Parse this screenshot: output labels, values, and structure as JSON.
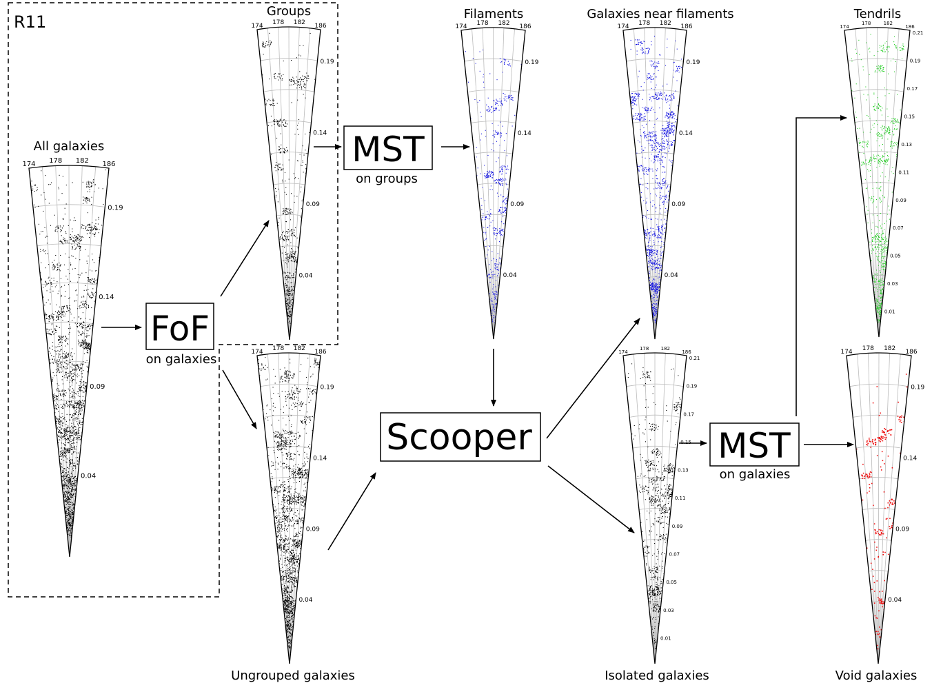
{
  "region_label": "R11",
  "boxes": {
    "fof": {
      "title": "FoF",
      "subtitle": "on galaxies"
    },
    "mst_groups": {
      "title": "MST",
      "subtitle": "on groups"
    },
    "scooper": {
      "title": "Scooper"
    },
    "mst_galaxies": {
      "title": "MST",
      "subtitle": "on galaxies"
    }
  },
  "wedges": [
    {
      "key": "all",
      "label": "All galaxies",
      "color": "#000000",
      "density": 2600,
      "top_ticks": [
        "174",
        "178",
        "182",
        "186"
      ],
      "radial_ticks": [
        "0.19",
        "0.14",
        "0.09",
        "0.04"
      ]
    },
    {
      "key": "groups",
      "label": "Groups",
      "color": "#000000",
      "density": 700,
      "top_ticks": [
        "174",
        "178",
        "182",
        "186"
      ],
      "radial_ticks": [
        "0.19",
        "0.14",
        "0.09",
        "0.04"
      ]
    },
    {
      "key": "filaments",
      "label": "Filaments",
      "color": "#1010e0",
      "density": 600,
      "top_ticks": [
        "174",
        "178",
        "182",
        "186"
      ],
      "radial_ticks": [
        "0.19",
        "0.14",
        "0.09",
        "0.04"
      ]
    },
    {
      "key": "near",
      "label": "Galaxies near filaments",
      "color": "#1010e0",
      "density": 1500,
      "top_ticks": [
        "174",
        "178",
        "182",
        "186"
      ],
      "radial_ticks": [
        "0.19",
        "0.14",
        "0.09",
        "0.04"
      ]
    },
    {
      "key": "tendrils",
      "label": "Tendrils",
      "color": "#22cc22",
      "density": 900,
      "top_ticks": [
        "174",
        "178",
        "182",
        "186"
      ],
      "radial_ticks": [
        "0.21",
        "0.19",
        "0.17",
        "0.15",
        "0.13",
        "0.11",
        "0.09",
        "0.07",
        "0.05",
        "0.03",
        "0.01"
      ]
    },
    {
      "key": "ungrouped",
      "label": "Ungrouped galaxies",
      "color": "#000000",
      "density": 2200,
      "top_ticks": [
        "174",
        "178",
        "182",
        "186"
      ],
      "radial_ticks": [
        "0.19",
        "0.14",
        "0.09",
        "0.04"
      ]
    },
    {
      "key": "isolated",
      "label": "Isolated galaxies",
      "color": "#000000",
      "density": 900,
      "top_ticks": [
        "174",
        "178",
        "182",
        "186"
      ],
      "radial_ticks": [
        "0.21",
        "0.19",
        "0.17",
        "0.15",
        "0.13",
        "0.11",
        "0.09",
        "0.07",
        "0.05",
        "0.03",
        "0.01"
      ]
    },
    {
      "key": "void",
      "label": "Void galaxies",
      "color": "#ee1111",
      "density": 260,
      "top_ticks": [
        "174",
        "178",
        "182",
        "186"
      ],
      "radial_ticks": [
        "0.19",
        "0.14",
        "0.09",
        "0.04"
      ]
    }
  ]
}
